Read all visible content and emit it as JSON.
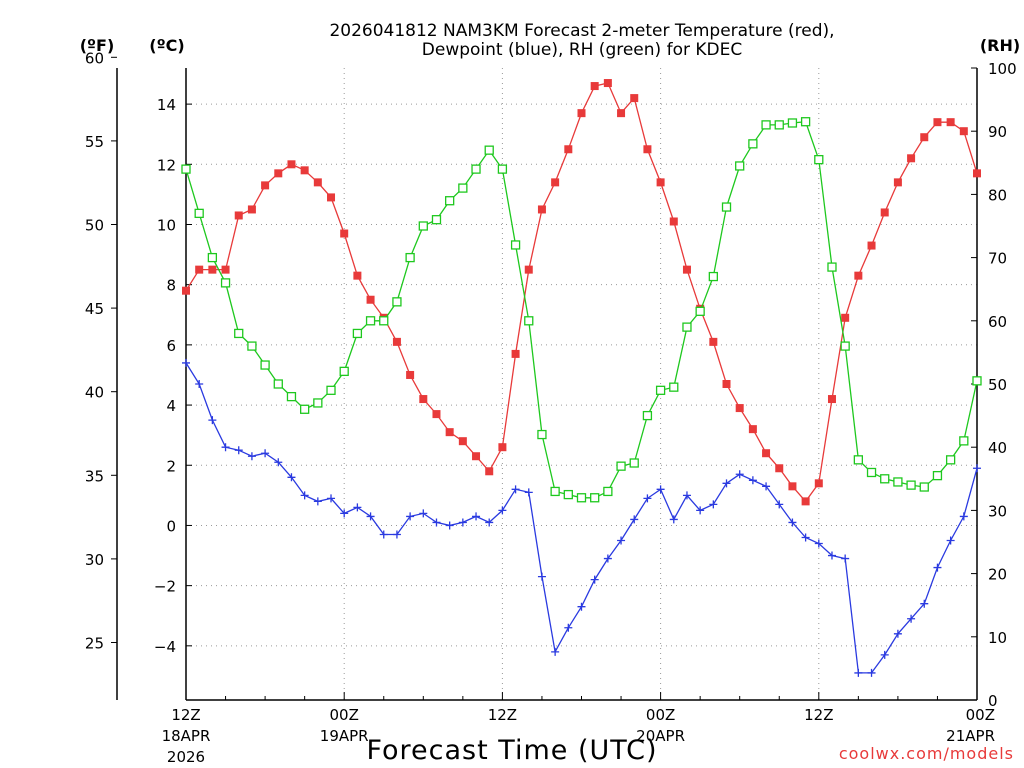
{
  "chart_data": {
    "type": "line",
    "title_line1": "2026041812 NAM3KM Forecast 2-meter Temperature (red),",
    "title_line2": "Dewpoint (blue), RH (green) for KDEC",
    "unit_left_f": "(ºF)",
    "unit_left_c": "(ºC)",
    "unit_right": "(RH)",
    "xlabel": "Forecast Time (UTC)",
    "credit": "coolwx.com/models",
    "x_range_hours": [
      0,
      60
    ],
    "c_range": [
      -5.8,
      15.2
    ],
    "rh_range": [
      0,
      100
    ],
    "f_ticks": [
      25,
      30,
      35,
      40,
      45,
      50,
      55,
      60
    ],
    "c_ticks": [
      -4,
      -2,
      0,
      2,
      4,
      6,
      8,
      10,
      12,
      14
    ],
    "rh_ticks": [
      0,
      10,
      20,
      30,
      40,
      50,
      60,
      70,
      80,
      90,
      100
    ],
    "x_ticks": [
      {
        "hour": 0,
        "line1": "12Z",
        "line2": "18APR",
        "line3": "2026"
      },
      {
        "hour": 12,
        "line1": "00Z",
        "line2": "19APR",
        "line3": ""
      },
      {
        "hour": 24,
        "line1": "12Z",
        "line2": "",
        "line3": ""
      },
      {
        "hour": 36,
        "line1": "00Z",
        "line2": "20APR",
        "line3": ""
      },
      {
        "hour": 48,
        "line1": "12Z",
        "line2": "",
        "line3": ""
      },
      {
        "hour": 60,
        "line1": "00Z",
        "line2": "21APR",
        "line3": ""
      }
    ],
    "grid_hours": [
      12,
      24,
      36,
      48
    ],
    "grid_c": [
      -4,
      -2,
      0,
      2,
      4,
      6,
      8,
      10,
      12,
      14
    ],
    "series": [
      {
        "name": "2-meter Temperature (°C)",
        "axis": "c",
        "color": "#e83a3a",
        "marker": "filled-square",
        "values": [
          7.8,
          8.5,
          8.5,
          8.5,
          10.3,
          10.5,
          11.3,
          11.7,
          12.0,
          11.8,
          11.4,
          10.9,
          9.7,
          8.3,
          7.5,
          6.9,
          6.1,
          5.0,
          4.2,
          3.7,
          3.1,
          2.8,
          2.3,
          1.8,
          2.6,
          5.7,
          8.5,
          10.5,
          11.4,
          12.5,
          13.7,
          14.6,
          14.7,
          13.7,
          14.2,
          12.5,
          11.4,
          10.1,
          8.5,
          7.2,
          6.1,
          4.7,
          3.9,
          3.2,
          2.4,
          1.9,
          1.3,
          0.8,
          1.4,
          4.2,
          6.9,
          8.3,
          9.3,
          10.4,
          11.4,
          12.2,
          12.9,
          13.4,
          13.4,
          13.1,
          11.7
        ]
      },
      {
        "name": "Dewpoint (°C)",
        "axis": "c",
        "color": "#2a3ae0",
        "marker": "plus",
        "values": [
          5.4,
          4.7,
          3.5,
          2.6,
          2.5,
          2.3,
          2.4,
          2.1,
          1.6,
          1.0,
          0.8,
          0.9,
          0.4,
          0.6,
          0.3,
          -0.3,
          -0.3,
          0.3,
          0.4,
          0.1,
          0.0,
          0.1,
          0.3,
          0.1,
          0.5,
          1.2,
          1.1,
          -1.7,
          -4.2,
          -3.4,
          -2.7,
          -1.8,
          -1.1,
          -0.5,
          0.2,
          0.9,
          1.2,
          0.2,
          1.0,
          0.5,
          0.7,
          1.4,
          1.7,
          1.5,
          1.3,
          0.7,
          0.1,
          -0.4,
          -0.6,
          -1.0,
          -1.1,
          -4.9,
          -4.9,
          -4.3,
          -3.6,
          -3.1,
          -2.6,
          -1.4,
          -0.5,
          0.3,
          1.9
        ]
      },
      {
        "name": "RH (%)",
        "axis": "rh",
        "color": "#1ec81e",
        "marker": "open-square",
        "values": [
          84,
          77,
          70,
          66,
          58,
          56,
          53,
          50,
          48,
          46,
          47,
          49,
          52,
          58,
          60,
          60,
          63,
          70,
          75,
          76,
          79,
          81,
          84,
          87,
          84,
          72,
          60,
          42,
          33,
          32.5,
          32,
          32,
          33,
          37,
          37.5,
          45,
          49,
          49.5,
          59,
          61.5,
          67,
          78,
          84.5,
          88,
          91,
          91,
          91.3,
          91.5,
          85.5,
          68.5,
          56,
          38,
          36,
          35,
          34.5,
          34,
          33.7,
          35.5,
          38,
          41,
          50.5
        ]
      }
    ]
  }
}
